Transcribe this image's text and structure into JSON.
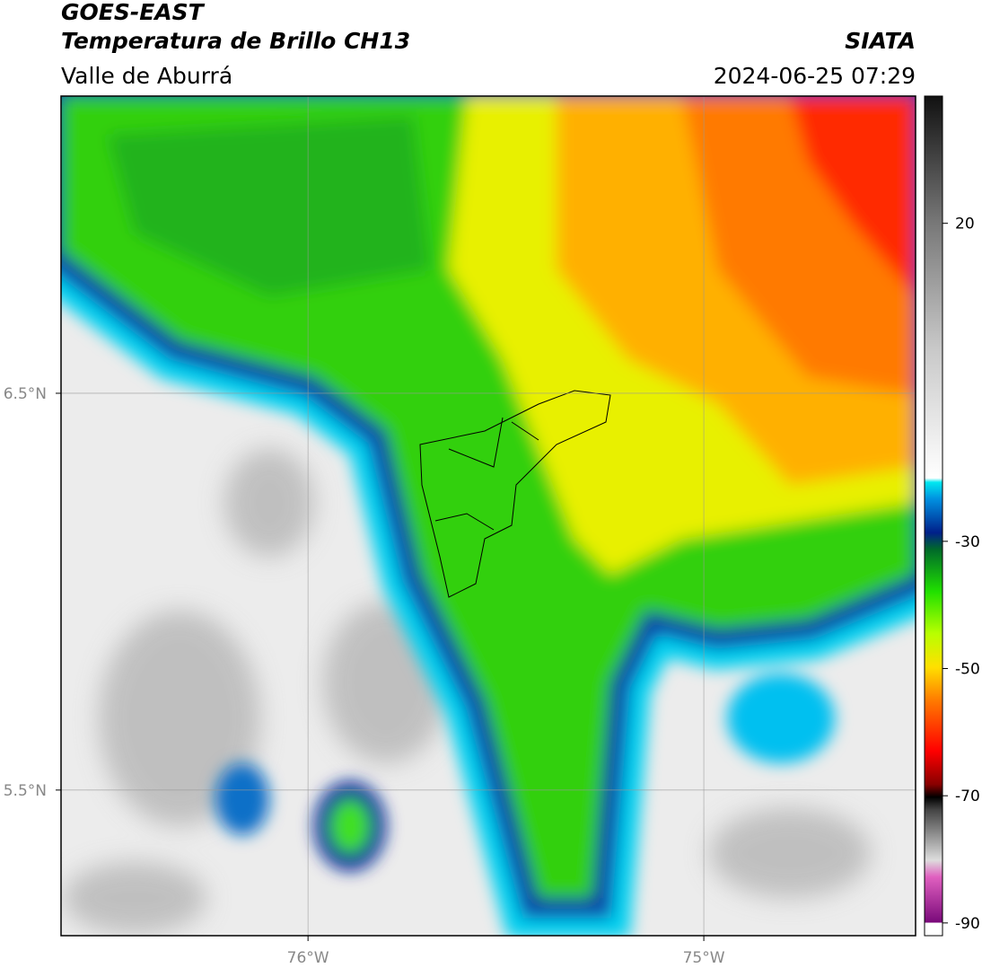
{
  "map": {
    "satellite": "GOES-EAST",
    "title": "Temperatura de Brillo CH13",
    "source": "SIATA",
    "region": "Valle de Aburrá",
    "timestamp": "2024-06-25 07:29",
    "xlim": [
      -76.624,
      -74.465
    ],
    "ylim": [
      5.133,
      7.249
    ],
    "xticks": [
      {
        "value": -76,
        "label": "76°W"
      },
      {
        "value": -75,
        "label": "75°W"
      }
    ],
    "yticks": [
      {
        "value": 6.5,
        "label": "6.5°N"
      },
      {
        "value": 5.5,
        "label": "5.5°N"
      }
    ],
    "grid": true,
    "colorbar": {
      "lim": [
        -92,
        40
      ],
      "ticks": [
        20,
        -30,
        -50,
        -70,
        -90
      ]
    }
  }
}
